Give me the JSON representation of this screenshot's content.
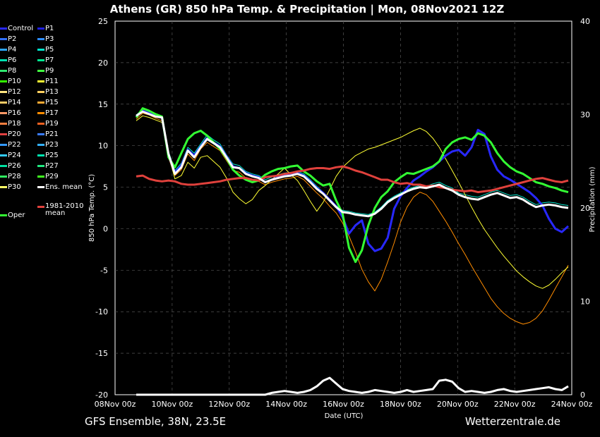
{
  "chart_data": {
    "type": "line",
    "title": "Athens  (GR)  850 hPa Temp. & Precipitation | Mon, 08Nov2021 12Z",
    "ylabel": "850 hPa Temp. (°C)",
    "y2label": "Precipitation (mm)",
    "xlabel": "Date (UTC)",
    "ylim": [
      -20,
      25
    ],
    "y2lim": [
      0,
      40
    ],
    "yticks": [
      "25",
      "20",
      "15",
      "10",
      "5",
      "0",
      "-5",
      "-10",
      "-15",
      "-20"
    ],
    "y2ticks": [
      "40",
      "30",
      "20",
      "10",
      "0"
    ],
    "xticks": [
      "08Nov 00z",
      "10Nov 00z",
      "12Nov 00z",
      "14Nov 00z",
      "16Nov 00z",
      "18Nov 00z",
      "20Nov 00z",
      "22Nov 00z",
      "24Nov 00z"
    ],
    "grid": true,
    "timestep_hours": 6,
    "series": [
      {
        "name": "Ens. mean",
        "color": "#ffffff",
        "values": [
          13.6,
          14.1,
          13.8,
          13.5,
          13.4,
          9.0,
          6.6,
          7.4,
          9.4,
          8.6,
          9.8,
          10.8,
          10.3,
          9.8,
          8.6,
          7.4,
          7.3,
          6.6,
          6.3,
          6.1,
          5.6,
          5.9,
          6.1,
          6.3,
          6.4,
          6.6,
          6.3,
          5.6,
          4.8,
          4.2,
          3.4,
          2.6,
          2.0,
          1.9,
          1.7,
          1.6,
          1.5,
          1.8,
          2.4,
          3.2,
          3.7,
          4.1,
          4.5,
          4.8,
          5.0,
          4.9,
          5.1,
          5.3,
          4.9,
          4.6,
          4.1,
          3.8,
          3.6,
          3.5,
          3.8,
          4.1,
          4.3,
          4.0,
          3.7,
          3.8,
          3.5,
          3.0,
          2.6,
          2.8,
          2.9,
          2.8,
          2.6,
          2.5
        ]
      },
      {
        "name": "1981-2010 mean",
        "color": "#e0413c",
        "values": [
          6.3,
          6.4,
          6.0,
          5.8,
          5.7,
          5.8,
          5.7,
          5.4,
          5.3,
          5.3,
          5.4,
          5.5,
          5.6,
          5.7,
          5.9,
          6.0,
          6.1,
          6.1,
          5.9,
          5.8,
          6.2,
          6.3,
          6.4,
          6.6,
          6.7,
          6.9,
          7.0,
          7.2,
          7.3,
          7.3,
          7.2,
          7.4,
          7.5,
          7.3,
          7.0,
          6.8,
          6.5,
          6.2,
          5.9,
          5.9,
          5.6,
          5.4,
          5.5,
          5.3,
          5.3,
          5.1,
          5.2,
          5.0,
          4.9,
          4.7,
          4.6,
          4.5,
          4.6,
          4.4,
          4.5,
          4.6,
          4.8,
          5.0,
          5.2,
          5.4,
          5.6,
          5.8,
          6.0,
          6.1,
          5.9,
          5.7,
          5.6,
          5.8
        ]
      },
      {
        "name": "Oper",
        "color": "#33ff33",
        "values": [
          13.4,
          14.5,
          14.2,
          13.8,
          13.5,
          8.6,
          7.4,
          9.1,
          10.8,
          11.5,
          11.8,
          11.2,
          10.4,
          9.6,
          8.5,
          7.1,
          6.4,
          5.9,
          5.6,
          5.8,
          6.5,
          6.9,
          7.2,
          7.3,
          7.5,
          7.6,
          6.9,
          6.4,
          5.7,
          5.2,
          5.4,
          3.4,
          1.8,
          -2.3,
          -4.0,
          -2.6,
          0.4,
          2.5,
          3.8,
          4.5,
          5.6,
          6.2,
          6.7,
          6.6,
          6.9,
          7.2,
          7.5,
          8.1,
          9.6,
          10.4,
          10.8,
          11.0,
          10.7,
          11.5,
          11.2,
          10.4,
          9.1,
          8.1,
          7.4,
          6.9,
          6.6,
          6.1,
          5.6,
          5.4,
          5.1,
          4.9,
          4.6,
          4.4
        ]
      },
      {
        "name": "Control",
        "color": "#2828ff",
        "values": [
          13.5,
          14.2,
          13.9,
          13.6,
          13.4,
          8.8,
          6.8,
          7.6,
          9.5,
          8.8,
          9.9,
          10.9,
          10.4,
          9.9,
          8.7,
          7.5,
          7.3,
          6.7,
          6.4,
          6.2,
          5.6,
          5.9,
          6.2,
          6.4,
          6.5,
          6.7,
          6.4,
          5.7,
          4.9,
          4.3,
          3.5,
          2.7,
          1.4,
          -0.6,
          0.4,
          1.0,
          -1.8,
          -2.7,
          -2.4,
          -1.1,
          2.4,
          3.9,
          4.9,
          5.8,
          6.3,
          6.9,
          7.4,
          8.1,
          8.8,
          9.3,
          9.5,
          8.8,
          9.8,
          11.9,
          11.4,
          8.7,
          7.1,
          6.3,
          5.9,
          5.4,
          4.9,
          4.4,
          3.7,
          2.8,
          1.2,
          0.0,
          -0.4,
          0.3
        ]
      },
      {
        "name": "P11",
        "color": "#ffff33",
        "values": [
          13.0,
          13.6,
          13.4,
          13.1,
          12.8,
          8.9,
          6.0,
          6.4,
          8.0,
          7.3,
          8.6,
          8.8,
          8.1,
          7.4,
          6.1,
          4.4,
          3.6,
          3.0,
          3.5,
          4.6,
          5.2,
          5.9,
          6.6,
          7.3,
          6.5,
          5.8,
          4.6,
          3.3,
          2.1,
          3.2,
          4.7,
          6.3,
          7.4,
          8.1,
          8.8,
          9.2,
          9.6,
          9.8,
          10.1,
          10.4,
          10.7,
          11.0,
          11.4,
          11.8,
          12.1,
          11.7,
          10.9,
          9.8,
          8.4,
          7.0,
          5.6,
          4.1,
          2.6,
          1.2,
          -0.1,
          -1.2,
          -2.3,
          -3.3,
          -4.2,
          -5.1,
          -5.8,
          -6.4,
          -6.9,
          -7.2,
          -6.8,
          -6.1,
          -5.3,
          -4.6
        ]
      },
      {
        "name": "P17",
        "color": "#ff8c00",
        "values": [
          13.2,
          13.9,
          13.7,
          13.3,
          13.0,
          8.5,
          6.4,
          7.1,
          9.0,
          8.2,
          9.6,
          10.4,
          9.9,
          9.4,
          8.2,
          7.0,
          6.8,
          6.1,
          5.9,
          5.7,
          5.3,
          5.6,
          5.8,
          6.0,
          6.1,
          6.3,
          5.9,
          5.1,
          4.3,
          3.6,
          2.7,
          1.9,
          0.7,
          -0.9,
          -2.8,
          -4.9,
          -6.4,
          -7.5,
          -6.1,
          -4.0,
          -1.7,
          0.8,
          2.6,
          3.8,
          4.4,
          4.1,
          3.3,
          2.1,
          0.9,
          -0.4,
          -1.8,
          -3.1,
          -4.5,
          -5.8,
          -7.1,
          -8.4,
          -9.4,
          -10.2,
          -10.8,
          -11.2,
          -11.5,
          -11.3,
          -10.8,
          -9.9,
          -8.6,
          -7.2,
          -5.8,
          -4.4
        ]
      },
      {
        "name": "P5",
        "color": "#00e5cc",
        "values": [
          13.7,
          14.4,
          14.1,
          13.8,
          13.6,
          9.3,
          7.0,
          7.9,
          9.8,
          9.1,
          10.2,
          11.3,
          10.7,
          10.2,
          8.9,
          7.8,
          7.6,
          6.9,
          6.6,
          6.4,
          5.9,
          6.2,
          6.5,
          6.7,
          6.8,
          6.9,
          6.6,
          5.9,
          5.1,
          4.4,
          3.6,
          2.8,
          2.2,
          2.1,
          1.9,
          1.8,
          1.7,
          2.0,
          2.6,
          3.4,
          3.9,
          4.3,
          4.7,
          5.0,
          5.2,
          5.1,
          5.4,
          5.6,
          5.2,
          4.9,
          4.3,
          4.1,
          3.9,
          3.8,
          4.1,
          4.4,
          4.6,
          4.3,
          4.0,
          4.1,
          3.8,
          3.3,
          2.9,
          3.1,
          3.2,
          3.1,
          2.9,
          2.8
        ]
      }
    ],
    "precipitation": {
      "name": "Ens. mean",
      "color": "#ffffff",
      "values": [
        0,
        0,
        0,
        0,
        0,
        0,
        0,
        0,
        0,
        0,
        0,
        0,
        0,
        0,
        0,
        0,
        0,
        0,
        0,
        0,
        0,
        0.2,
        0.3,
        0.4,
        0.3,
        0.2,
        0.3,
        0.5,
        0.9,
        1.5,
        1.8,
        1.2,
        0.6,
        0.4,
        0.3,
        0.2,
        0.3,
        0.5,
        0.4,
        0.3,
        0.2,
        0.3,
        0.5,
        0.3,
        0.4,
        0.5,
        0.6,
        1.5,
        1.6,
        1.4,
        0.7,
        0.3,
        0.4,
        0.3,
        0.2,
        0.3,
        0.5,
        0.6,
        0.4,
        0.3,
        0.4,
        0.5,
        0.6,
        0.7,
        0.8,
        0.6,
        0.5,
        0.9
      ]
    }
  },
  "legend": {
    "items": [
      {
        "label": "Control",
        "color": "#2828ff"
      },
      {
        "label": "P1",
        "color": "#1e1ee0"
      },
      {
        "label": "P2",
        "color": "#3070ff"
      },
      {
        "label": "P3",
        "color": "#2d8cff"
      },
      {
        "label": "P4",
        "color": "#2ba6ff"
      },
      {
        "label": "P5",
        "color": "#00e5cc"
      },
      {
        "label": "P6",
        "color": "#00e0b0"
      },
      {
        "label": "P7",
        "color": "#00e890"
      },
      {
        "label": "P8",
        "color": "#30e870"
      },
      {
        "label": "P9",
        "color": "#40ff40"
      },
      {
        "label": "P10",
        "color": "#33ff00"
      },
      {
        "label": "P11",
        "color": "#ffff33"
      },
      {
        "label": "P12",
        "color": "#ffe680"
      },
      {
        "label": "P13",
        "color": "#ffd060"
      },
      {
        "label": "P14",
        "color": "#ffcc66"
      },
      {
        "label": "P15",
        "color": "#ffaa33"
      },
      {
        "label": "P16",
        "color": "#ff9966"
      },
      {
        "label": "P17",
        "color": "#ff8c00"
      },
      {
        "label": "P18",
        "color": "#ff8040"
      },
      {
        "label": "P19",
        "color": "#f06020"
      },
      {
        "label": "P20",
        "color": "#e04040"
      },
      {
        "label": "P21",
        "color": "#3a7cff"
      },
      {
        "label": "P22",
        "color": "#3399ff"
      },
      {
        "label": "P23",
        "color": "#33b0ff"
      },
      {
        "label": "P24",
        "color": "#33ccff"
      },
      {
        "label": "P25",
        "color": "#00e5b0"
      },
      {
        "label": "P26",
        "color": "#00e0a0"
      },
      {
        "label": "P27",
        "color": "#20e880"
      },
      {
        "label": "P28",
        "color": "#30f060"
      },
      {
        "label": "P29",
        "color": "#40ff20"
      },
      {
        "label": "P30",
        "color": "#ffff66"
      },
      {
        "label": "Ens. mean",
        "color": "#ffffff"
      }
    ],
    "oper": {
      "label": "Oper",
      "color": "#33ff33"
    },
    "climate": {
      "label": "1981-2010\nmean",
      "line1": "1981-2010",
      "line2": "mean",
      "color": "#e0413c"
    }
  },
  "footer": {
    "left": "GFS Ensemble, 38N, 23.5E",
    "right": "Wetterzentrale.de"
  }
}
